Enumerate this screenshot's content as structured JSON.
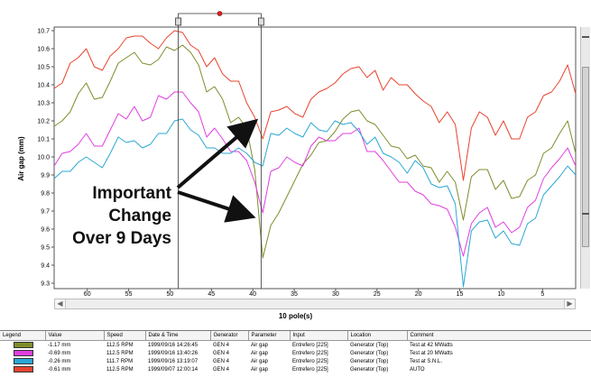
{
  "chart_data": {
    "type": "line",
    "xlabel": "10 pole(s)",
    "ylabel": "Air gap (mm)",
    "xlim": [
      64,
      1
    ],
    "ylim": [
      9.27,
      10.72
    ],
    "x_reversed": true,
    "x_ticks": [
      "60",
      "55",
      "50",
      "45",
      "40",
      "35",
      "30",
      "25",
      "20",
      "15",
      "10",
      "5"
    ],
    "y_ticks": [
      "10.7",
      "10.6",
      "10.5",
      "10.4",
      "10.3",
      "10.2",
      "10.1",
      "10.0",
      "9.9",
      "9.8",
      "9.7",
      "9.6",
      "9.5",
      "9.4",
      "9.3"
    ],
    "cursor_positions": [
      49,
      39
    ],
    "series": [
      {
        "color": "#e8442f",
        "values": [
          10.38,
          10.41,
          10.52,
          10.55,
          10.6,
          10.5,
          10.48,
          10.56,
          10.6,
          10.66,
          10.67,
          10.67,
          10.63,
          10.6,
          10.66,
          10.7,
          10.69,
          10.62,
          10.59,
          10.5,
          10.55,
          10.46,
          10.42,
          10.42,
          10.3,
          10.22,
          10.1,
          10.25,
          10.26,
          10.28,
          10.24,
          10.22,
          10.32,
          10.36,
          10.38,
          10.41,
          10.46,
          10.49,
          10.5,
          10.44,
          10.48,
          10.37,
          10.44,
          10.4,
          10.4,
          10.35,
          10.31,
          10.28,
          10.19,
          10.25,
          10.18,
          9.87,
          10.16,
          10.25,
          10.22,
          10.12,
          10.2,
          10.1,
          10.1,
          10.22,
          10.25,
          10.34,
          10.36,
          10.42,
          10.51,
          10.35
        ]
      },
      {
        "color": "#7f8c2b",
        "values": [
          10.17,
          10.2,
          10.25,
          10.35,
          10.41,
          10.32,
          10.33,
          10.42,
          10.52,
          10.55,
          10.58,
          10.52,
          10.51,
          10.54,
          10.61,
          10.59,
          10.62,
          10.58,
          10.51,
          10.36,
          10.39,
          10.32,
          10.19,
          10.22,
          10.16,
          9.93,
          9.44,
          9.62,
          9.69,
          9.78,
          9.87,
          9.96,
          10.01,
          10.08,
          10.09,
          10.14,
          10.21,
          10.25,
          10.26,
          10.2,
          10.18,
          10.12,
          10.06,
          10.05,
          9.99,
          10.01,
          9.95,
          9.94,
          9.86,
          9.92,
          9.86,
          9.65,
          9.89,
          9.93,
          9.93,
          9.82,
          9.87,
          9.77,
          9.78,
          9.87,
          9.9,
          10.02,
          10.05,
          10.13,
          10.2,
          10.02
        ]
      },
      {
        "color": "#e03ee0",
        "values": [
          9.95,
          10.02,
          10.03,
          10.07,
          10.13,
          10.06,
          10.06,
          10.15,
          10.24,
          10.21,
          10.28,
          10.2,
          10.22,
          10.34,
          10.32,
          10.36,
          10.36,
          10.3,
          10.25,
          10.11,
          10.16,
          10.1,
          10.03,
          10.03,
          9.98,
          9.86,
          9.69,
          9.92,
          9.94,
          10.0,
          9.97,
          9.95,
          10.06,
          10.11,
          10.09,
          10.09,
          10.13,
          10.13,
          10.16,
          10.03,
          10.03,
          9.98,
          9.92,
          9.86,
          9.86,
          9.81,
          9.79,
          9.74,
          9.73,
          9.71,
          9.61,
          9.45,
          9.63,
          9.69,
          9.72,
          9.61,
          9.64,
          9.58,
          9.61,
          9.72,
          9.76,
          9.88,
          9.94,
          9.99,
          10.05,
          9.95
        ]
      },
      {
        "color": "#2aa7d4",
        "values": [
          9.88,
          9.92,
          9.92,
          9.97,
          10.0,
          9.97,
          9.94,
          10.02,
          10.11,
          10.08,
          10.09,
          10.05,
          10.07,
          10.13,
          10.13,
          10.2,
          10.21,
          10.15,
          10.12,
          10.05,
          10.05,
          10.02,
          10.02,
          10.05,
          10.02,
          9.97,
          9.95,
          10.13,
          10.12,
          10.16,
          10.13,
          10.11,
          10.19,
          10.15,
          10.14,
          10.2,
          10.18,
          10.19,
          10.14,
          10.07,
          10.11,
          10.02,
          10.0,
          9.97,
          9.91,
          9.98,
          9.94,
          9.85,
          9.83,
          9.84,
          9.74,
          9.28,
          9.59,
          9.64,
          9.65,
          9.55,
          9.59,
          9.52,
          9.51,
          9.63,
          9.66,
          9.79,
          9.84,
          9.89,
          9.95,
          9.9
        ]
      }
    ],
    "annotation": {
      "lines": [
        "Important",
        "Change",
        "Over 9 Days"
      ]
    }
  },
  "legend_table": {
    "columns": [
      "Legend",
      "Value",
      "Speed",
      "Date & Time",
      "Generator",
      "Parameter",
      "Input",
      "Location",
      "Comment"
    ],
    "rows": [
      {
        "swatch_color": "#7f8c2b",
        "value": "-1.17 mm",
        "speed": "112.5 RPM",
        "datetime": "1999/09/16 14:26:45",
        "generator": "GEN 4",
        "parameter": "Air gap",
        "input": "Entrefero [225]",
        "location": "Generator (Top)",
        "comment": "Test at 42 MWatts"
      },
      {
        "swatch_color": "#e03ee0",
        "value": "-0.69 mm",
        "speed": "112.5 RPM",
        "datetime": "1999/09/16 13:40:26",
        "generator": "GEN 4",
        "parameter": "Air gap",
        "input": "Entrefero [225]",
        "location": "Generator (Top)",
        "comment": "Test at 20 MWatts"
      },
      {
        "swatch_color": "#2aa7d4",
        "value": "-0.26 mm",
        "speed": "111.7 RPM",
        "datetime": "1999/09/16 13:19:07",
        "generator": "GEN 4",
        "parameter": "Air gap",
        "input": "Entrefero [225]",
        "location": "Generator (Top)",
        "comment": "Test at S.N.L."
      },
      {
        "swatch_color": "#e8442f",
        "value": "-0.61 mm",
        "speed": "112.5 RPM",
        "datetime": "1999/09/07 12:00:14",
        "generator": "GEN 4",
        "parameter": "Air gap",
        "input": "Entrefero [225]",
        "location": "Generator (Top)",
        "comment": "AUTO"
      }
    ]
  }
}
